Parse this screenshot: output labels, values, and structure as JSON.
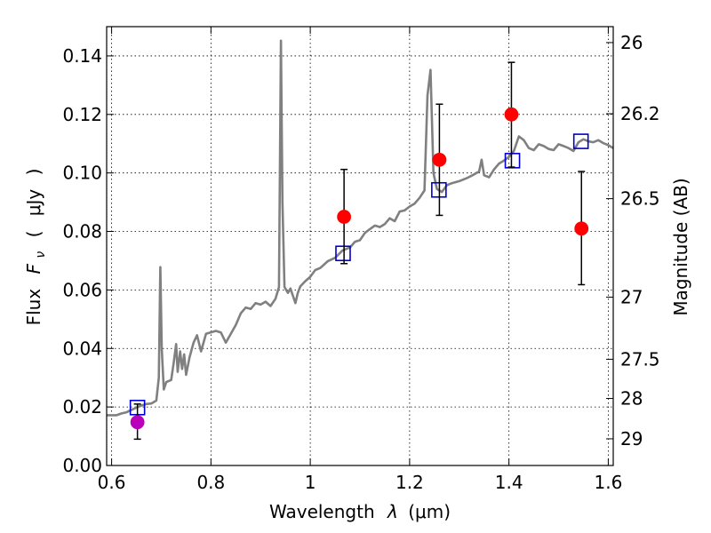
{
  "chart_data": {
    "type": "scatter",
    "xlabel_text": "Wavelength",
    "xlabel_symbol": "λ",
    "xlabel_unit": "(μm)",
    "ylabel_text": "Flux",
    "ylabel_symbol": "F",
    "ylabel_subscript": "ν",
    "ylabel_open": "(",
    "ylabel_unit": "μJy",
    "ylabel_close": ")",
    "y2label": "Magnitude (AB)",
    "xlim": [
      0.59,
      1.61
    ],
    "ylim": [
      0.0,
      0.15
    ],
    "grid": true,
    "x_ticks": [
      {
        "value": 0.6,
        "label": "0.6"
      },
      {
        "value": 0.8,
        "label": "0.8"
      },
      {
        "value": 1.0,
        "label": "1"
      },
      {
        "value": 1.2,
        "label": "1.2"
      },
      {
        "value": 1.4,
        "label": "1.4"
      },
      {
        "value": 1.6,
        "label": "1.6"
      }
    ],
    "y_ticks": [
      {
        "value": 0.0,
        "label": "0.00"
      },
      {
        "value": 0.02,
        "label": "0.02"
      },
      {
        "value": 0.04,
        "label": "0.04"
      },
      {
        "value": 0.06,
        "label": "0.06"
      },
      {
        "value": 0.08,
        "label": "0.08"
      },
      {
        "value": 0.1,
        "label": "0.10"
      },
      {
        "value": 0.12,
        "label": "0.12"
      },
      {
        "value": 0.14,
        "label": "0.14"
      }
    ],
    "y2_ticks": [
      {
        "label": "26",
        "mag": 26.0
      },
      {
        "label": "26.2",
        "mag": 26.2
      },
      {
        "label": "26.5",
        "mag": 26.5
      },
      {
        "label": "27",
        "mag": 27.0
      },
      {
        "label": "27.5",
        "mag": 27.5
      },
      {
        "label": "28",
        "mag": 28.0
      },
      {
        "label": "29",
        "mag": 29.0
      }
    ],
    "series": [
      {
        "kind": "line",
        "color": "#808080",
        "points": [
          [
            0.59,
            0.0172
          ],
          [
            0.61,
            0.0172
          ],
          [
            0.62,
            0.0178
          ],
          [
            0.63,
            0.0182
          ],
          [
            0.64,
            0.019
          ],
          [
            0.65,
            0.0198
          ],
          [
            0.66,
            0.0205
          ],
          [
            0.67,
            0.021
          ],
          [
            0.68,
            0.0212
          ],
          [
            0.69,
            0.0222
          ],
          [
            0.695,
            0.03
          ],
          [
            0.698,
            0.0678
          ],
          [
            0.701,
            0.04
          ],
          [
            0.705,
            0.026
          ],
          [
            0.71,
            0.0285
          ],
          [
            0.72,
            0.0292
          ],
          [
            0.725,
            0.035
          ],
          [
            0.73,
            0.0415
          ],
          [
            0.733,
            0.032
          ],
          [
            0.738,
            0.039
          ],
          [
            0.742,
            0.033
          ],
          [
            0.746,
            0.038
          ],
          [
            0.75,
            0.031
          ],
          [
            0.757,
            0.037
          ],
          [
            0.765,
            0.042
          ],
          [
            0.772,
            0.0445
          ],
          [
            0.78,
            0.039
          ],
          [
            0.79,
            0.045
          ],
          [
            0.81,
            0.046
          ],
          [
            0.82,
            0.0455
          ],
          [
            0.83,
            0.042
          ],
          [
            0.85,
            0.048
          ],
          [
            0.86,
            0.052
          ],
          [
            0.87,
            0.054
          ],
          [
            0.88,
            0.0535
          ],
          [
            0.89,
            0.0555
          ],
          [
            0.9,
            0.055
          ],
          [
            0.91,
            0.056
          ],
          [
            0.92,
            0.0545
          ],
          [
            0.93,
            0.057
          ],
          [
            0.937,
            0.061
          ],
          [
            0.941,
            0.1452
          ],
          [
            0.944,
            0.09
          ],
          [
            0.948,
            0.061
          ],
          [
            0.955,
            0.059
          ],
          [
            0.96,
            0.0605
          ],
          [
            0.97,
            0.0555
          ],
          [
            0.975,
            0.059
          ],
          [
            0.98,
            0.0612
          ],
          [
            0.99,
            0.063
          ],
          [
            1.0,
            0.0645
          ],
          [
            1.01,
            0.0668
          ],
          [
            1.02,
            0.0675
          ],
          [
            1.035,
            0.0698
          ],
          [
            1.05,
            0.071
          ],
          [
            1.065,
            0.0735
          ],
          [
            1.08,
            0.0745
          ],
          [
            1.09,
            0.0765
          ],
          [
            1.1,
            0.077
          ],
          [
            1.11,
            0.0795
          ],
          [
            1.12,
            0.0808
          ],
          [
            1.13,
            0.082
          ],
          [
            1.14,
            0.0815
          ],
          [
            1.15,
            0.0825
          ],
          [
            1.16,
            0.0845
          ],
          [
            1.17,
            0.0835
          ],
          [
            1.18,
            0.0868
          ],
          [
            1.19,
            0.0872
          ],
          [
            1.2,
            0.0885
          ],
          [
            1.21,
            0.0895
          ],
          [
            1.22,
            0.0915
          ],
          [
            1.23,
            0.094
          ],
          [
            1.236,
            0.1265
          ],
          [
            1.242,
            0.1352
          ],
          [
            1.248,
            0.1
          ],
          [
            1.255,
            0.0945
          ],
          [
            1.265,
            0.0935
          ],
          [
            1.275,
            0.0958
          ],
          [
            1.285,
            0.0965
          ],
          [
            1.3,
            0.0972
          ],
          [
            1.315,
            0.0982
          ],
          [
            1.33,
            0.0995
          ],
          [
            1.34,
            0.1005
          ],
          [
            1.345,
            0.1045
          ],
          [
            1.35,
            0.0992
          ],
          [
            1.36,
            0.0985
          ],
          [
            1.37,
            0.1012
          ],
          [
            1.38,
            0.1032
          ],
          [
            1.39,
            0.1042
          ],
          [
            1.4,
            0.1055
          ],
          [
            1.41,
            0.1075
          ],
          [
            1.42,
            0.1125
          ],
          [
            1.43,
            0.1112
          ],
          [
            1.44,
            0.1085
          ],
          [
            1.45,
            0.1078
          ],
          [
            1.46,
            0.1098
          ],
          [
            1.47,
            0.1092
          ],
          [
            1.48,
            0.1082
          ],
          [
            1.49,
            0.1078
          ],
          [
            1.5,
            0.1098
          ],
          [
            1.51,
            0.1092
          ],
          [
            1.52,
            0.1085
          ],
          [
            1.53,
            0.1075
          ],
          [
            1.54,
            0.1105
          ],
          [
            1.55,
            0.1115
          ],
          [
            1.56,
            0.1108
          ],
          [
            1.57,
            0.1105
          ],
          [
            1.58,
            0.1112
          ],
          [
            1.59,
            0.1102
          ],
          [
            1.6,
            0.1095
          ],
          [
            1.61,
            0.1085
          ]
        ]
      },
      {
        "kind": "squares",
        "color": "#0000cc",
        "points": [
          [
            0.652,
            0.0198
          ],
          [
            1.066,
            0.0725
          ],
          [
            1.259,
            0.0942
          ],
          [
            1.407,
            0.1042
          ],
          [
            1.545,
            0.1108
          ]
        ]
      },
      {
        "kind": "errorbar",
        "color": "#ff0000",
        "points": [
          {
            "x": 1.068,
            "y": 0.085,
            "lo": 0.069,
            "hi": 0.1012
          },
          {
            "x": 1.26,
            "y": 0.1045,
            "lo": 0.0855,
            "hi": 0.1235
          },
          {
            "x": 1.405,
            "y": 0.12,
            "lo": 0.102,
            "hi": 0.1378
          },
          {
            "x": 1.546,
            "y": 0.081,
            "lo": 0.0618,
            "hi": 0.1005
          }
        ]
      },
      {
        "kind": "errorbar",
        "color": "#bb00bb",
        "points": [
          {
            "x": 0.652,
            "y": 0.0148,
            "lo": 0.009,
            "hi": 0.021
          }
        ]
      }
    ]
  }
}
